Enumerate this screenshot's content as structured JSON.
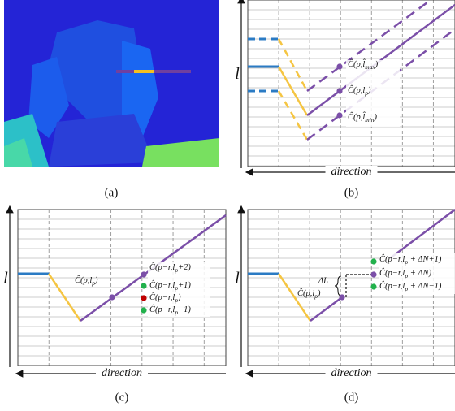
{
  "panels": [
    {
      "caption": "(a)"
    },
    {
      "caption": "(b)",
      "y_axis_label": "l",
      "x_axis_label": "direction",
      "labels": [
        {
          "pre": "Ĉ(p,l̂",
          "sub": "max",
          "post": ")"
        },
        {
          "pre": "Ĉ(p,l",
          "sub": "p",
          "post": ")"
        },
        {
          "pre": "Ĉ(p,l̂",
          "sub": "min",
          "post": ")"
        }
      ]
    },
    {
      "caption": "(c)",
      "y_axis_label": "l",
      "x_axis_label": "direction",
      "labels": [
        {
          "pre": "Ĉ(p,l",
          "sub": "p",
          "post": ")"
        },
        {
          "pre": "Ĉ(p−r,l",
          "sub": "p",
          "post": "+2)"
        },
        {
          "pre": "Ĉ(p−r,l",
          "sub": "p",
          "post": "+1)"
        },
        {
          "pre": "Ĉ(p−r,l",
          "sub": "p",
          "post": ")"
        },
        {
          "pre": "Ĉ(p−r,l",
          "sub": "p",
          "post": "−1)"
        }
      ]
    },
    {
      "caption": "(d)",
      "y_axis_label": "l",
      "x_axis_label": "direction",
      "delta_label": "ΔL",
      "labels": [
        {
          "pre": "Ĉ(p,l",
          "sub": "p",
          "post": ")"
        },
        {
          "pre": "Ĉ(p−r,l",
          "sub": "p",
          "post": " + ΔN+1)"
        },
        {
          "pre": "Ĉ(p−r,l",
          "sub": "p",
          "post": " + ΔN)"
        },
        {
          "pre": "Ĉ(p−r,l",
          "sub": "p",
          "post": " + ΔN−1)"
        }
      ]
    }
  ]
}
